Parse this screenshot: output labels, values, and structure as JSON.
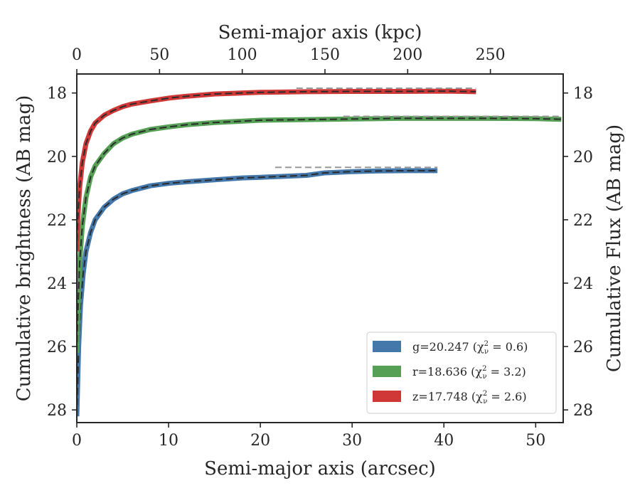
{
  "chart_data": {
    "type": "line",
    "xlabel": "Semi-major axis (arcsec)",
    "ylabel": "Cumulative brightness (AB mag)",
    "top_xlabel": "Semi-major axis (kpc)",
    "right_ylabel": "Cumulative Flux (AB mag)",
    "xlim": [
      0,
      53
    ],
    "ylim": [
      28.4,
      17.4
    ],
    "top_xlim_kpc": [
      0,
      294
    ],
    "x_ticks": [
      "0",
      "10",
      "20",
      "30",
      "40",
      "50"
    ],
    "y_ticks": [
      "18",
      "20",
      "22",
      "24",
      "26",
      "28"
    ],
    "top_x_ticks": [
      "0",
      "50",
      "100",
      "150",
      "200",
      "250"
    ],
    "right_y_ticks": [
      "18",
      "20",
      "22",
      "24",
      "26",
      "28"
    ],
    "legend_position": "lower-right",
    "model_color": "#2b2b2b",
    "asymptote_color": "#999999",
    "series": [
      {
        "name": "g=20.247 (χ²ᵥ = 0.6)",
        "legend_label": "g=20.247 (χ",
        "legend_suffix": " = 0.6)",
        "color": "#4477aa",
        "x": [
          0,
          0.2,
          0.4,
          0.7,
          1.0,
          1.5,
          2,
          3,
          4,
          5,
          6,
          8,
          10,
          12,
          15,
          18,
          20,
          25,
          27,
          30,
          33,
          36,
          39.3
        ],
        "y": [
          28.2,
          26.0,
          24.7,
          23.7,
          23.0,
          22.4,
          22.0,
          21.6,
          21.35,
          21.18,
          21.08,
          20.93,
          20.85,
          20.8,
          20.74,
          20.68,
          20.66,
          20.6,
          20.52,
          20.48,
          20.46,
          20.45,
          20.45
        ],
        "asymptote": 20.247,
        "asymptote_xmax": 39.3
      },
      {
        "name": "r=18.636 (χ²ᵥ = 3.2)",
        "legend_label": "r=18.636 (χ",
        "legend_suffix": " = 3.2)",
        "color": "#55a055",
        "x": [
          0,
          0.1,
          0.3,
          0.6,
          1.0,
          1.5,
          2,
          3,
          4,
          5,
          6,
          8,
          10,
          12,
          15,
          20,
          25,
          30,
          35,
          40,
          45,
          50,
          52.8
        ],
        "y": [
          26.2,
          25.0,
          23.4,
          22.2,
          21.3,
          20.65,
          20.3,
          19.9,
          19.6,
          19.42,
          19.3,
          19.15,
          19.07,
          19.0,
          18.93,
          18.86,
          18.84,
          18.82,
          18.8,
          18.8,
          18.8,
          18.81,
          18.83
        ],
        "asymptote": 18.636,
        "asymptote_xmax": 52.8
      },
      {
        "name": "z=17.748 (χ²ᵥ = 2.6)",
        "legend_label": "z=17.748 (χ",
        "legend_suffix": " = 2.6)",
        "color": "#d03838",
        "x": [
          0,
          0.1,
          0.3,
          0.6,
          1.0,
          1.5,
          2,
          3,
          4,
          5,
          6,
          8,
          10,
          12,
          15,
          20,
          25,
          30,
          35,
          40,
          43.5
        ],
        "y": [
          23.0,
          22.0,
          21.0,
          20.2,
          19.6,
          19.2,
          18.95,
          18.7,
          18.55,
          18.43,
          18.35,
          18.25,
          18.16,
          18.1,
          18.03,
          17.98,
          17.96,
          17.95,
          17.95,
          17.94,
          17.96
        ],
        "asymptote": 17.748,
        "asymptote_xmax": 43.5
      }
    ]
  }
}
